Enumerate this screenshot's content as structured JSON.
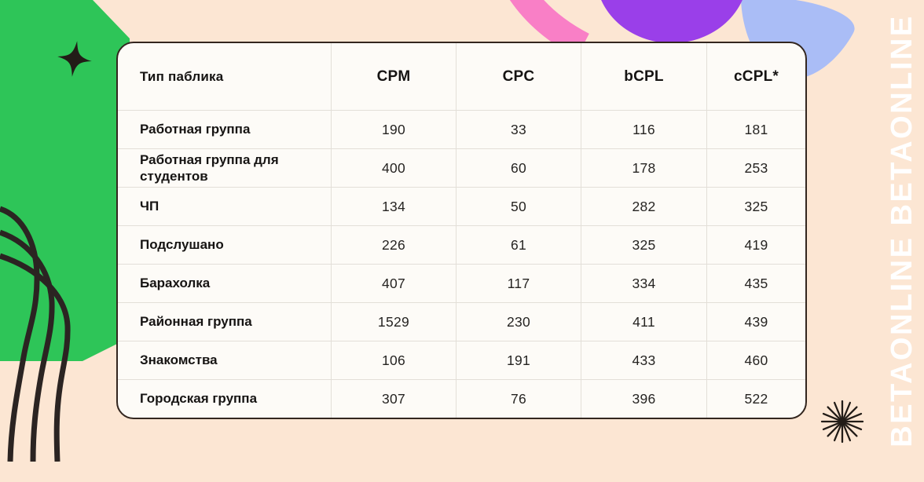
{
  "watermark": {
    "text": "BETAONLINE BETAONLINE"
  },
  "decor": {
    "background": "#FCE6D3",
    "green": "#2EC558",
    "pink": "#F97FC6",
    "purple": "#9A3FE9",
    "blue": "#AABDF6",
    "ink": "#2B2422",
    "star": "#221C17"
  },
  "chart_data": {
    "type": "table",
    "title": "",
    "columns": [
      "Тип паблика",
      "CPM",
      "CPC",
      "bCPL",
      "cCPL*"
    ],
    "rows": [
      {
        "label": "Работная группа",
        "values": [
          190,
          33,
          116,
          181
        ]
      },
      {
        "label": "Работная группа для студентов",
        "values": [
          400,
          60,
          178,
          253
        ]
      },
      {
        "label": "ЧП",
        "values": [
          134,
          50,
          282,
          325
        ]
      },
      {
        "label": "Подслушано",
        "values": [
          226,
          61,
          325,
          419
        ]
      },
      {
        "label": "Барахолка",
        "values": [
          407,
          117,
          334,
          435
        ]
      },
      {
        "label": "Районная группа",
        "values": [
          1529,
          230,
          411,
          439
        ]
      },
      {
        "label": "Знакомства",
        "values": [
          106,
          191,
          433,
          460
        ]
      },
      {
        "label": "Городская группа",
        "values": [
          307,
          76,
          396,
          522
        ]
      }
    ]
  }
}
